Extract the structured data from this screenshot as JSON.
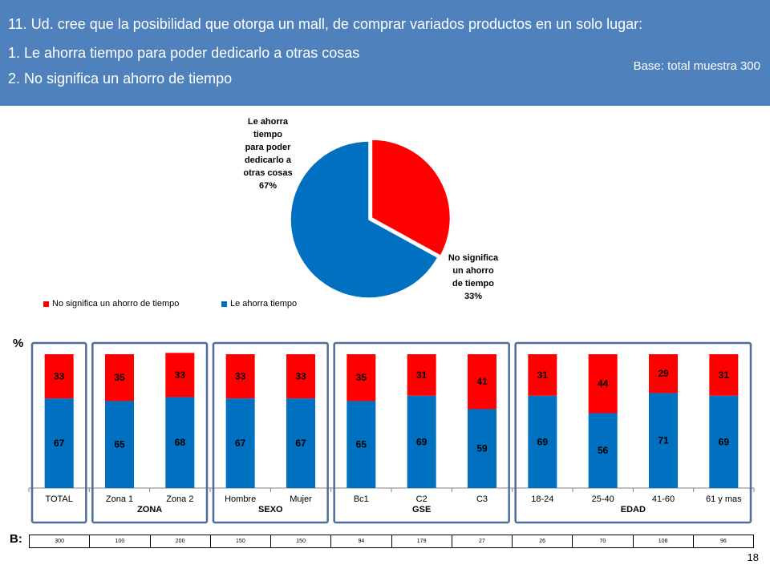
{
  "header": {
    "question": "11. Ud. cree que la posibilidad que otorga un mall, de comprar variados productos en un solo lugar:",
    "option1": "1. Le ahorra tiempo para poder dedicarlo a otras cosas",
    "option2": "2. No significa un ahorro de tiempo",
    "base": "Base:  total muestra 300"
  },
  "colors": {
    "ahorra": "#0070c0",
    "no_ahorro": "#ff0000",
    "header_bg": "#4f81bd",
    "group_border": "#4f6d9a"
  },
  "chart_data": [
    {
      "type": "pie",
      "slices": [
        {
          "name": "No significa un ahorro de tiempo",
          "value": 33,
          "label_lines": [
            "No significa",
            "un ahorro",
            "de tiempo",
            "33%"
          ],
          "color": "#ff0000"
        },
        {
          "name": "Le ahorra tiempo",
          "value": 67,
          "label_lines": [
            "Le ahorra",
            "tiempo",
            "para poder",
            "dedicarlo a",
            "otras cosas",
            "67%"
          ],
          "color": "#0070c0"
        }
      ],
      "legend": [
        "No significa un ahorro de tiempo",
        "Le ahorra tiempo"
      ]
    },
    {
      "type": "bar",
      "stacked": true,
      "ylabel": "%",
      "categories": [
        "TOTAL",
        "Zona 1",
        "Zona 2",
        "Hombre",
        "Mujer",
        "Bc1",
        "C2",
        "C3",
        "18-24",
        "25-40",
        "41-60",
        "61 y mas"
      ],
      "series": [
        {
          "name": "Le ahorra tiempo",
          "color": "#0070c0",
          "values": [
            67,
            65,
            68,
            67,
            67,
            65,
            69,
            59,
            69,
            56,
            71,
            69
          ]
        },
        {
          "name": "No significa un ahorro de tiempo",
          "color": "#ff0000",
          "values": [
            33,
            35,
            33,
            33,
            33,
            35,
            31,
            41,
            31,
            44,
            29,
            31
          ]
        }
      ],
      "groups": [
        {
          "label": "ZONA",
          "from": 1,
          "to": 2
        },
        {
          "label": "SEXO",
          "from": 3,
          "to": 4
        },
        {
          "label": "GSE",
          "from": 5,
          "to": 7
        },
        {
          "label": "EDAD",
          "from": 8,
          "to": 11
        }
      ],
      "ylim": [
        0,
        100
      ]
    }
  ],
  "base_label": "B:",
  "base_values": [
    "300",
    "100",
    "200",
    "150",
    "150",
    "94",
    "179",
    "27",
    "26",
    "70",
    "108",
    "96"
  ],
  "page_number": "18"
}
